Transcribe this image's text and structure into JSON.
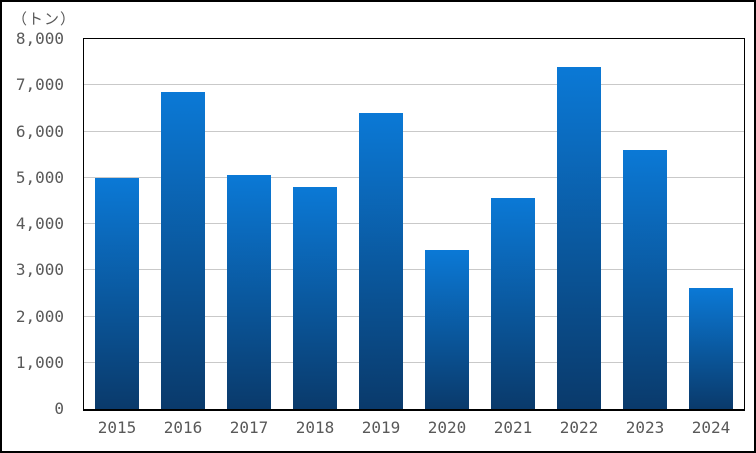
{
  "figure": {
    "background": "#ffffff",
    "border_color": "#000000"
  },
  "chart_data": {
    "type": "bar",
    "title": "",
    "unit_label": "（トン）",
    "categories": [
      "2015",
      "2016",
      "2017",
      "2018",
      "2019",
      "2020",
      "2021",
      "2022",
      "2023",
      "2024"
    ],
    "values": [
      5000,
      6850,
      5050,
      4800,
      6400,
      3430,
      4570,
      7400,
      5600,
      2620
    ],
    "xlabel": "",
    "ylabel": "トン",
    "ylim": [
      0,
      8000
    ],
    "ytick_step": 1000,
    "ytick_labels": [
      "0",
      "1,000",
      "2,000",
      "3,000",
      "4,000",
      "5,000",
      "6,000",
      "7,000",
      "8,000"
    ],
    "grid": "horizontal",
    "legend_position": "none",
    "colors": {
      "bar_gradient_top": "#0b79d6",
      "bar_gradient_bottom": "#0a3a6b",
      "gridline": "#c9c9c9",
      "axis": "#000000",
      "tick_text": "#595959"
    }
  }
}
